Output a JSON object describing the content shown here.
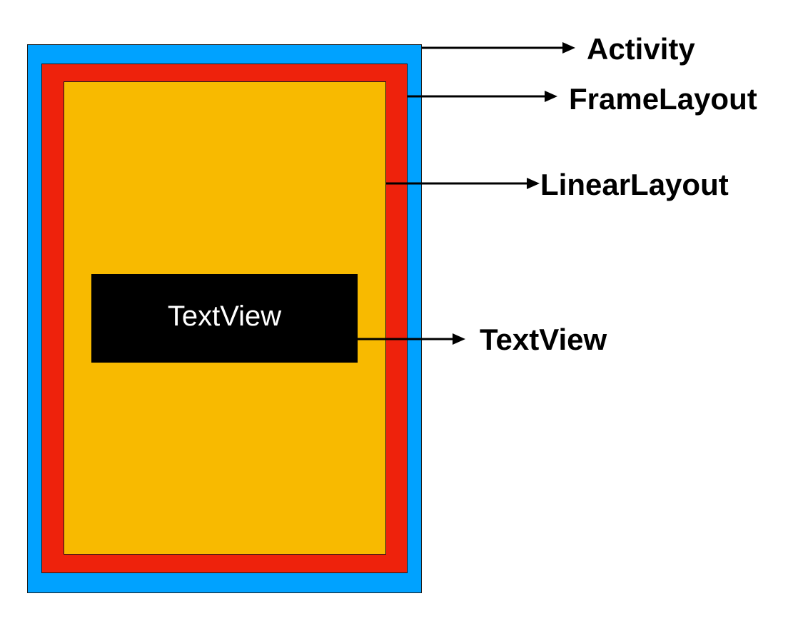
{
  "colors": {
    "activity": "#00a2ff",
    "frame_layout": "#ee220c",
    "linear_layout": "#f8ba00",
    "text_view": "#000000"
  },
  "inner": {
    "text_view_text": "TextView"
  },
  "labels": {
    "activity": "Activity",
    "frame_layout": "FrameLayout",
    "linear_layout": "LinearLayout",
    "text_view": "TextView"
  }
}
